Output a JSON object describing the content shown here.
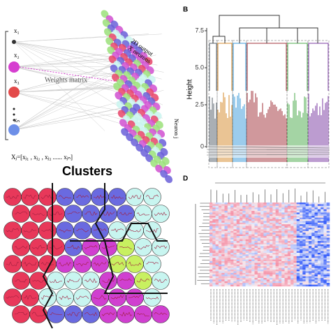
{
  "panel_a": {
    "inputs": [
      "x₁",
      "x₂",
      "x₃",
      "xₙ"
    ],
    "weights_label": "Weights  matrix",
    "output_label_1": "2D output",
    "output_label_2": "X neurons",
    "neuron_label": "Neuron j",
    "vector_label": "Xⱼ=[xⱼ₁ , xⱼ₂ , xⱼ₃ ...... xⱼₙ]"
  },
  "panel_b": {
    "label": "B",
    "y_axis_title": "Height",
    "yticks": [
      "7.5",
      "5.0",
      "2.5",
      "0"
    ]
  },
  "panel_c": {
    "title": "Clusters"
  },
  "panel_d": {
    "label": "D"
  }
}
